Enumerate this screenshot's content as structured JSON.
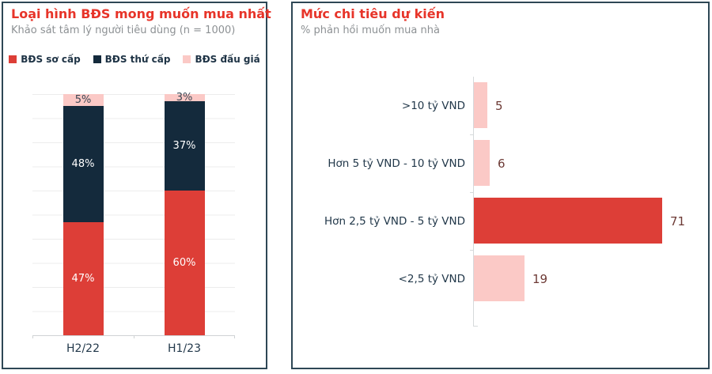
{
  "chart_data": [
    {
      "type": "bar",
      "variant": "stacked-column",
      "title": "Loại hình BĐS mong muốn mua nhất",
      "subtitle": "Khảo sát tâm lý người tiêu dùng (n = 1000)",
      "categories": [
        "H2/22",
        "H1/23"
      ],
      "series": [
        {
          "name": "BĐS sơ cấp",
          "color": "#dd3e37",
          "label_color": "#ffffff",
          "values": [
            47,
            60
          ],
          "labels": [
            "47%",
            "60%"
          ]
        },
        {
          "name": "BĐS thứ cấp",
          "color": "#142a3c",
          "label_color": "#ffffff",
          "values": [
            48,
            37
          ],
          "labels": [
            "48%",
            "37%"
          ]
        },
        {
          "name": "BĐS đấu giá",
          "color": "#fbc9c6",
          "label_color": "#3a4754",
          "values": [
            5,
            3
          ],
          "labels": [
            "5%",
            "3%"
          ]
        }
      ],
      "ylim": [
        0,
        100
      ],
      "grid": true,
      "legend_position": "top"
    },
    {
      "type": "bar",
      "variant": "horizontal",
      "title": "Mức chi tiêu dự kiến",
      "subtitle": "% phản hồi muốn mua nhà",
      "categories": [
        ">10 tỷ VND",
        "Hơn 5 tỷ VND - 10 tỷ VND",
        "Hơn 2,5 tỷ VND - 5 tỷ VND",
        "<2,5 tỷ VND"
      ],
      "values": [
        5,
        6,
        71,
        19
      ],
      "bar_colors": [
        "#fbc9c6",
        "#fbc9c6",
        "#dd3e37",
        "#fbc9c6"
      ],
      "value_label_color": "#6d3a35",
      "xlim": [
        0,
        75
      ],
      "grid": false,
      "legend_position": "none"
    }
  ],
  "colors": {
    "title_red": "#e73429",
    "subtitle_gray": "#8d9194",
    "panel_border": "#2e4755",
    "primary_red": "#dd3e37",
    "navy": "#142a3c",
    "pink": "#fbc9c6"
  }
}
